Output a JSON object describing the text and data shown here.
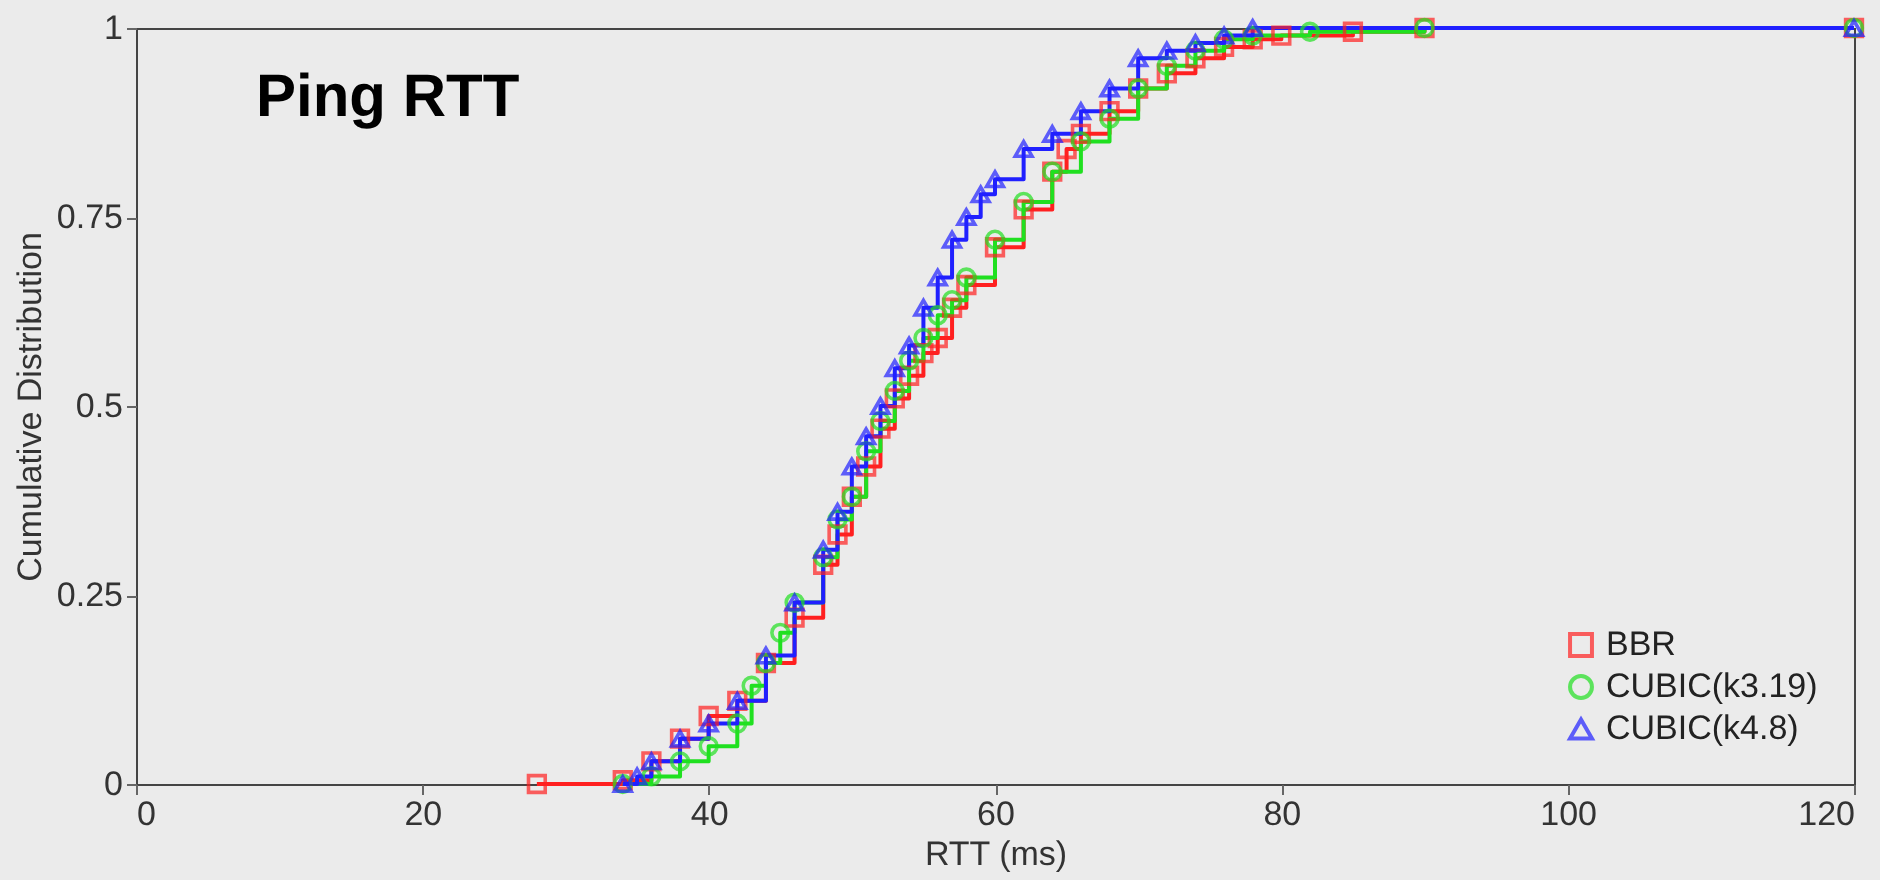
{
  "chart_data": {
    "type": "step",
    "title": "Ping RTT",
    "xlabel": "RTT (ms)",
    "ylabel": "Cumulative Distribution",
    "xlim": [
      0,
      120
    ],
    "ylim": [
      0,
      1
    ],
    "xticks": [
      0,
      20,
      40,
      60,
      80,
      100,
      120
    ],
    "yticks": [
      0,
      0.25,
      0.5,
      0.75,
      1
    ],
    "grid": false,
    "legend": "bottom right",
    "line_style": "solid",
    "series": [
      {
        "name": "BBR",
        "color": "#ff2020",
        "marker": "square",
        "x": [
          28,
          34,
          36,
          38,
          40,
          42,
          44,
          46,
          48,
          49,
          50,
          51,
          52,
          53,
          54,
          55,
          56,
          57,
          58,
          60,
          62,
          64,
          65,
          66,
          68,
          70,
          72,
          74,
          76,
          78,
          80,
          85,
          90,
          120
        ],
        "values": [
          0,
          0.005,
          0.03,
          0.06,
          0.09,
          0.11,
          0.16,
          0.22,
          0.29,
          0.33,
          0.38,
          0.42,
          0.47,
          0.51,
          0.54,
          0.57,
          0.59,
          0.63,
          0.66,
          0.71,
          0.76,
          0.81,
          0.84,
          0.86,
          0.89,
          0.92,
          0.94,
          0.96,
          0.975,
          0.985,
          0.99,
          0.995,
          1,
          1
        ]
      },
      {
        "name": "CUBIC(k3.19)",
        "color": "#20e020",
        "marker": "circle",
        "x": [
          34,
          36,
          38,
          40,
          42,
          43,
          44,
          45,
          46,
          48,
          49,
          50,
          51,
          52,
          53,
          54,
          55,
          56,
          57,
          58,
          60,
          62,
          64,
          66,
          68,
          70,
          72,
          74,
          76,
          78,
          82,
          90,
          120
        ],
        "values": [
          0,
          0.01,
          0.03,
          0.05,
          0.08,
          0.13,
          0.16,
          0.2,
          0.24,
          0.3,
          0.35,
          0.38,
          0.44,
          0.48,
          0.52,
          0.56,
          0.59,
          0.62,
          0.64,
          0.67,
          0.72,
          0.77,
          0.81,
          0.85,
          0.88,
          0.92,
          0.95,
          0.97,
          0.985,
          0.99,
          0.995,
          1,
          1
        ]
      },
      {
        "name": "CUBIC(k4.8)",
        "color": "#2020ff",
        "marker": "triangle",
        "x": [
          34,
          35,
          36,
          38,
          40,
          42,
          44,
          46,
          48,
          49,
          50,
          51,
          52,
          53,
          54,
          55,
          56,
          57,
          58,
          59,
          60,
          62,
          64,
          66,
          68,
          70,
          72,
          74,
          76,
          78,
          120
        ],
        "values": [
          0,
          0.01,
          0.03,
          0.06,
          0.08,
          0.11,
          0.17,
          0.24,
          0.31,
          0.36,
          0.42,
          0.46,
          0.5,
          0.55,
          0.58,
          0.63,
          0.67,
          0.72,
          0.75,
          0.78,
          0.8,
          0.84,
          0.86,
          0.89,
          0.92,
          0.96,
          0.97,
          0.98,
          0.99,
          1,
          1
        ]
      }
    ]
  }
}
